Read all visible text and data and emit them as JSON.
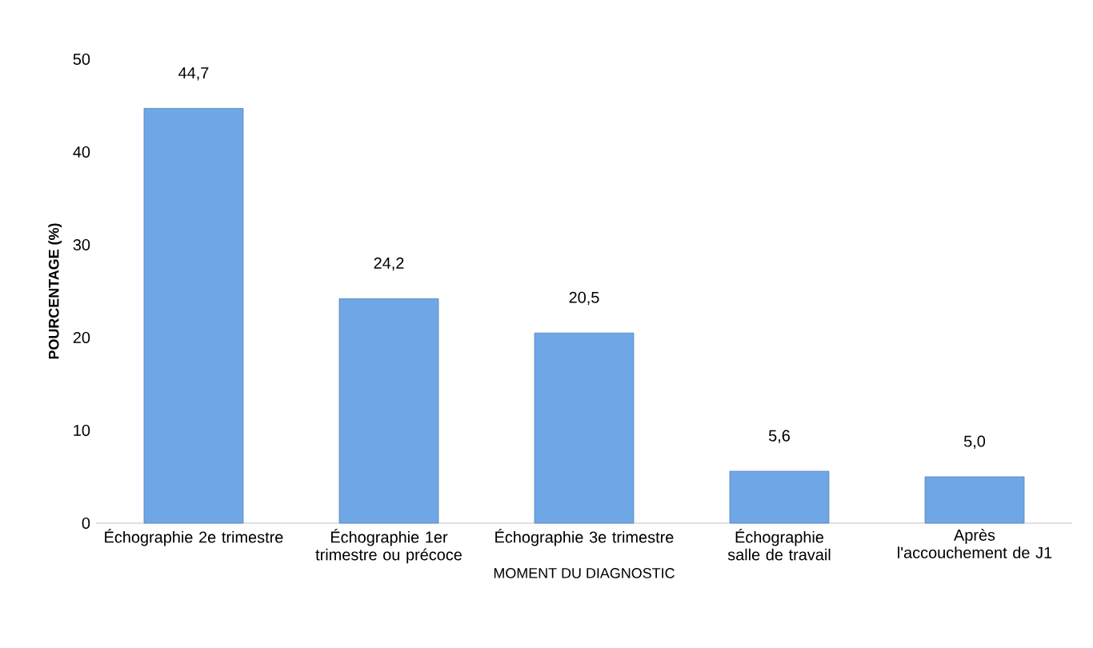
{
  "chart_data": {
    "type": "bar",
    "xlabel": "MOMENT DU DIAGNOSTIC",
    "ylabel": "POURCENTAGE (%)",
    "categories": [
      "Échographie 2e trimestre",
      "Échographie 1er trimestre ou précoce",
      "Échographie 3e trimestre",
      "Échographie salle de travail",
      "Après l'accouchement de J1"
    ],
    "values": [
      44.7,
      24.2,
      20.5,
      5.6,
      5.0
    ],
    "value_labels": [
      "44,7",
      "24,2",
      "20,5",
      "5,6",
      "5,0"
    ],
    "color": "#6fa6e6",
    "ylim": [
      0,
      50
    ],
    "yticks": [
      0,
      10,
      20,
      30,
      40,
      50
    ],
    "grid": false
  }
}
